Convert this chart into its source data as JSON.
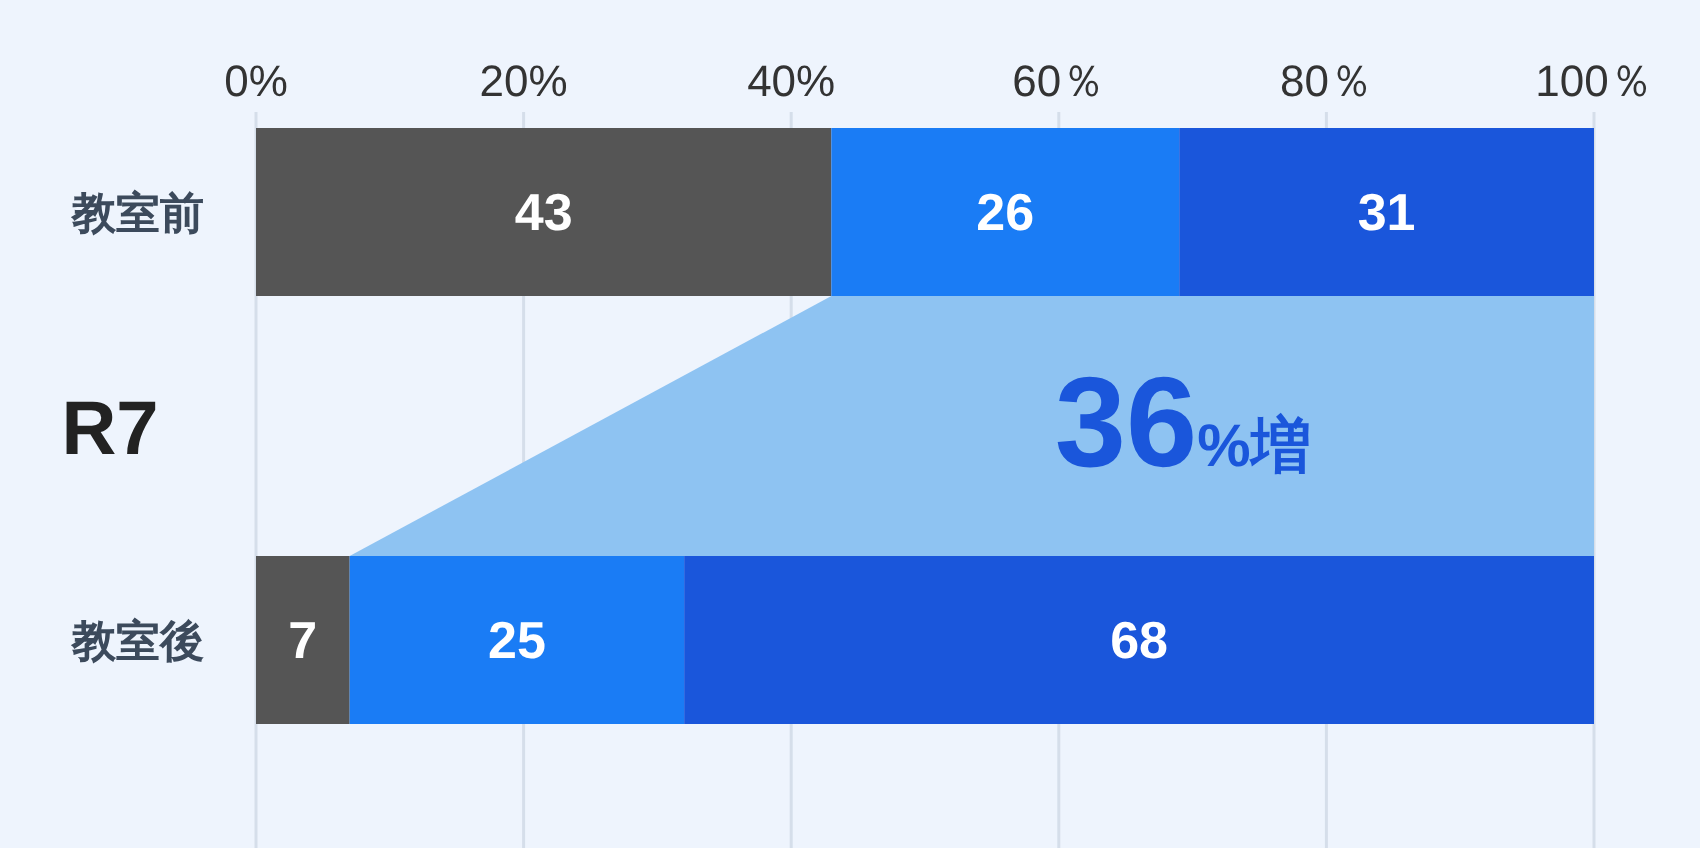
{
  "chart_data": {
    "type": "bar",
    "orientation": "horizontal",
    "stacked": true,
    "ylabel": "R7",
    "categories": [
      "教室前",
      "教室後"
    ],
    "series": [
      {
        "color": "#555555",
        "values": [
          43,
          7
        ]
      },
      {
        "color": "#1a7cf5",
        "values": [
          26,
          25
        ]
      },
      {
        "color": "#1a56db",
        "values": [
          31,
          68
        ]
      }
    ],
    "xlim": [
      0,
      100
    ],
    "xticks": [
      {
        "value": 0,
        "label": "0%"
      },
      {
        "value": 20,
        "label": "20%"
      },
      {
        "value": 40,
        "label": "40%"
      },
      {
        "value": 60,
        "label": "60％"
      },
      {
        "value": 80,
        "label": "80％"
      },
      {
        "value": 100,
        "label": "100％"
      }
    ],
    "grid": "x",
    "data_labels": true,
    "annotations": [
      "36%増"
    ]
  }
}
